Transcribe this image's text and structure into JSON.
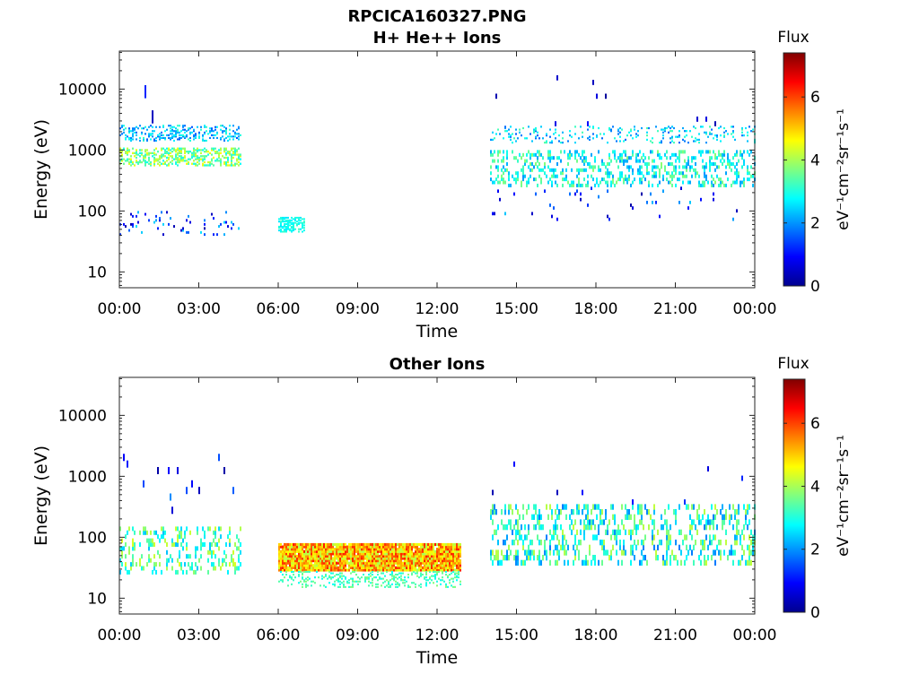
{
  "figure_title": "RPCICA160327.PNG",
  "chart_data": [
    {
      "type": "heatmap",
      "title": "H+ He++ Ions",
      "xlabel": "Time",
      "ylabel": "Energy (eV)",
      "x_ticks": [
        "00:00",
        "03:00",
        "06:00",
        "09:00",
        "12:00",
        "15:00",
        "18:00",
        "21:00",
        "00:00"
      ],
      "x_range_hours": [
        0,
        24
      ],
      "y_ticks": [
        "10",
        "100",
        "1000",
        "10000"
      ],
      "y_scale": "log",
      "y_range_eV": [
        5.5,
        42000
      ],
      "colorbar": {
        "label": "Flux",
        "unit_label": "eV⁻¹cm⁻²sr⁻¹s⁻¹",
        "ticks": [
          "0",
          "2",
          "4",
          "6"
        ],
        "range": [
          0,
          7.4
        ],
        "colormap": "jet"
      },
      "data_blocks": [
        {
          "t_start_h": 0.0,
          "t_end_h": 4.6,
          "e_min_eV": 1400,
          "e_max_eV": 2600,
          "flux_min": 1.5,
          "flux_max": 3.2,
          "density": 0.28
        },
        {
          "t_start_h": 0.0,
          "t_end_h": 4.6,
          "e_min_eV": 550,
          "e_max_eV": 1100,
          "flux_min": 2.8,
          "flux_max": 4.6,
          "density": 0.45
        },
        {
          "t_start_h": 0.0,
          "t_end_h": 4.6,
          "e_min_eV": 40,
          "e_max_eV": 100,
          "flux_min": 0.3,
          "flux_max": 2.6,
          "density": 0.07
        },
        {
          "t_start_h": 0.0,
          "t_end_h": 4.6,
          "e_min_eV": 100,
          "e_max_eV": 30000,
          "flux_min": 0.2,
          "flux_max": 1.2,
          "density": 0.004
        },
        {
          "t_start_h": 6.0,
          "t_end_h": 7.0,
          "e_min_eV": 45,
          "e_max_eV": 80,
          "flux_min": 2.6,
          "flux_max": 3.2,
          "density": 0.5
        },
        {
          "t_start_h": 14.0,
          "t_end_h": 24.0,
          "e_min_eV": 1300,
          "e_max_eV": 2500,
          "flux_min": 1.6,
          "flux_max": 3.4,
          "density": 0.14
        },
        {
          "t_start_h": 14.0,
          "t_end_h": 24.0,
          "e_min_eV": 250,
          "e_max_eV": 1000,
          "flux_min": 2.0,
          "flux_max": 3.8,
          "density": 0.33
        },
        {
          "t_start_h": 14.0,
          "t_end_h": 24.0,
          "e_min_eV": 70,
          "e_max_eV": 250,
          "flux_min": 0.2,
          "flux_max": 2.5,
          "density": 0.025
        },
        {
          "t_start_h": 14.0,
          "t_end_h": 24.0,
          "e_min_eV": 2500,
          "e_max_eV": 20000,
          "flux_min": 0.2,
          "flux_max": 1.0,
          "density": 0.004
        }
      ]
    },
    {
      "type": "heatmap",
      "title": "Other Ions",
      "xlabel": "Time",
      "ylabel": "Energy (eV)",
      "x_ticks": [
        "00:00",
        "03:00",
        "06:00",
        "09:00",
        "12:00",
        "15:00",
        "18:00",
        "21:00",
        "00:00"
      ],
      "x_range_hours": [
        0,
        24
      ],
      "y_ticks": [
        "10",
        "100",
        "1000",
        "10000"
      ],
      "y_scale": "log",
      "y_range_eV": [
        5.5,
        42000
      ],
      "colorbar": {
        "label": "Flux",
        "unit_label": "eV⁻¹cm⁻²sr⁻¹s⁻¹",
        "ticks": [
          "0",
          "2",
          "4",
          "6"
        ],
        "range": [
          0,
          7.4
        ],
        "colormap": "jet"
      },
      "data_blocks": [
        {
          "t_start_h": 0.0,
          "t_end_h": 4.6,
          "e_min_eV": 25,
          "e_max_eV": 150,
          "flux_min": 2.3,
          "flux_max": 4.4,
          "density": 0.28
        },
        {
          "t_start_h": 0.0,
          "t_end_h": 4.6,
          "e_min_eV": 150,
          "e_max_eV": 3000,
          "flux_min": 0.2,
          "flux_max": 2.2,
          "density": 0.012
        },
        {
          "t_start_h": 6.0,
          "t_end_h": 12.9,
          "e_min_eV": 28,
          "e_max_eV": 80,
          "flux_min": 4.0,
          "flux_max": 6.3,
          "density": 0.97
        },
        {
          "t_start_h": 6.0,
          "t_end_h": 12.9,
          "e_min_eV": 15,
          "e_max_eV": 28,
          "flux_min": 2.8,
          "flux_max": 3.8,
          "density": 0.25
        },
        {
          "t_start_h": 14.0,
          "t_end_h": 24.0,
          "e_min_eV": 35,
          "e_max_eV": 350,
          "flux_min": 1.8,
          "flux_max": 4.2,
          "density": 0.32
        },
        {
          "t_start_h": 14.0,
          "t_end_h": 24.0,
          "e_min_eV": 350,
          "e_max_eV": 3000,
          "flux_min": 0.2,
          "flux_max": 1.3,
          "density": 0.006
        }
      ]
    }
  ]
}
